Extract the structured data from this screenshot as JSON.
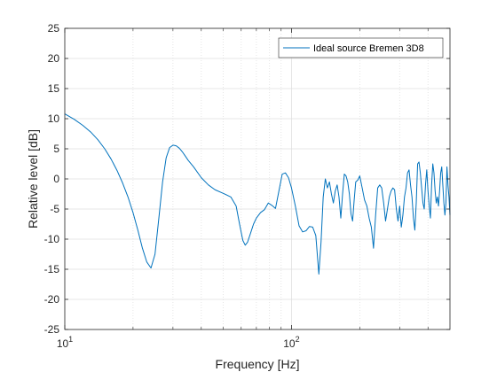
{
  "chart_data": {
    "type": "line",
    "title": "",
    "xlabel": "Frequency [Hz]",
    "ylabel": "Relative level [dB]",
    "xscale": "log",
    "xlim": [
      10,
      500
    ],
    "ylim": [
      -25,
      25
    ],
    "yticks": [
      -25,
      -20,
      -15,
      -10,
      -5,
      0,
      5,
      10,
      15,
      20,
      25
    ],
    "xticks": [
      {
        "value": 10,
        "base": "10",
        "exp": "1"
      },
      {
        "value": 100,
        "base": "10",
        "exp": "2"
      }
    ],
    "grid": true,
    "minor_grid": true,
    "legend_placement": "top-right",
    "colors": {
      "series": "#0072BD",
      "grid": "#dfdfdf",
      "axis": "#262626"
    },
    "series": [
      {
        "name": "Ideal source Bremen 3D8",
        "x": [
          10,
          11,
          12,
          13,
          14,
          15,
          16,
          17,
          18,
          19,
          20,
          21,
          22,
          23,
          24,
          25,
          26,
          27,
          28,
          29,
          30,
          31,
          32,
          33,
          34,
          35,
          37,
          40,
          43,
          46,
          50,
          54,
          57,
          59,
          61,
          62.5,
          64,
          66,
          68,
          70,
          73,
          76,
          79,
          82,
          85,
          88,
          91,
          94,
          97,
          100,
          104,
          108,
          112,
          116,
          120,
          124,
          128,
          132,
          135,
          138,
          141,
          144,
          147,
          150,
          153,
          156,
          159,
          162,
          165,
          168,
          171,
          174,
          177,
          180,
          183,
          186,
          189,
          192,
          196,
          200,
          205,
          210,
          215,
          220,
          225,
          230,
          235,
          240,
          245,
          250,
          255,
          260,
          265,
          270,
          275,
          280,
          285,
          290,
          295,
          300,
          305,
          310,
          315,
          320,
          325,
          330,
          335,
          340,
          345,
          350,
          355,
          360,
          365,
          370,
          375,
          380,
          385,
          390,
          395,
          400,
          405,
          410,
          415,
          420,
          425,
          430,
          435,
          440,
          445,
          450,
          455,
          460,
          465,
          470,
          475,
          480,
          485,
          490,
          495,
          500
        ],
        "values": [
          10.8,
          9.9,
          8.9,
          7.8,
          6.5,
          5.0,
          3.3,
          1.4,
          -0.7,
          -3.0,
          -5.6,
          -8.5,
          -11.5,
          -13.8,
          -14.8,
          -12.5,
          -6.5,
          -0.5,
          3.5,
          5.2,
          5.6,
          5.5,
          5.1,
          4.5,
          3.8,
          3.1,
          2.0,
          0.2,
          -1.0,
          -1.8,
          -2.4,
          -3.0,
          -4.5,
          -7.5,
          -10.2,
          -11.0,
          -10.5,
          -9.0,
          -7.5,
          -6.5,
          -5.6,
          -5.1,
          -4.0,
          -4.4,
          -4.9,
          -2.0,
          0.8,
          1.0,
          0.2,
          -1.5,
          -4.5,
          -7.8,
          -8.8,
          -8.6,
          -7.9,
          -8.0,
          -9.4,
          -15.8,
          -10.5,
          -3.0,
          0.0,
          -1.5,
          -0.5,
          -2.5,
          -4.0,
          -2.0,
          -1.0,
          -3.0,
          -6.5,
          -2.5,
          0.8,
          0.5,
          -0.5,
          -2.5,
          -5.8,
          -7.0,
          -3.5,
          -0.5,
          -0.2,
          0.5,
          -1.5,
          -3.5,
          -4.5,
          -6.5,
          -8.0,
          -11.5,
          -6.0,
          -1.5,
          -1.0,
          -1.5,
          -4.0,
          -7.0,
          -5.0,
          -3.0,
          -2.0,
          -1.5,
          -1.8,
          -5.0,
          -7.0,
          -4.5,
          -8.0,
          -6.0,
          -3.0,
          -1.5,
          1.0,
          1.5,
          -1.0,
          -3.0,
          -6.5,
          -8.5,
          -4.0,
          2.5,
          2.8,
          1.0,
          -1.5,
          -4.0,
          -5.0,
          -1.0,
          1.5,
          -2.0,
          -4.5,
          -6.5,
          -1.0,
          2.5,
          1.0,
          -2.0,
          -4.0,
          -3.0,
          -4.5,
          -2.0,
          1.0,
          2.0,
          -1.0,
          -4.0,
          -6.0,
          -4.0,
          2.0,
          -1.0,
          -3.0,
          -6.0
        ]
      }
    ]
  }
}
